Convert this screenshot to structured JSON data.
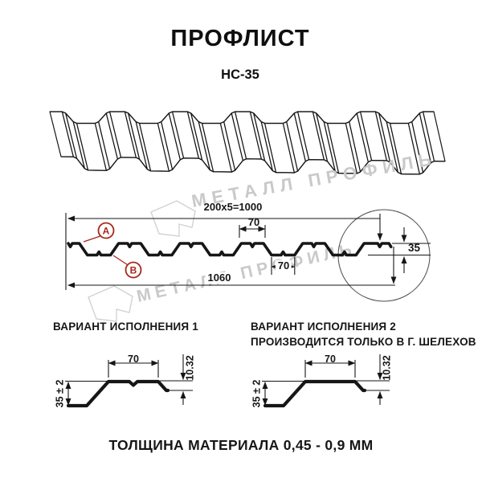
{
  "title": "ПРОФЛИСТ",
  "subtitle": "НС-35",
  "watermark": {
    "text": "МЕТАЛЛ ПРОФИЛЬ"
  },
  "cross_section": {
    "dim_pitch_total": "200x5=1000",
    "dim_rib_top_width": "70",
    "dim_rib_bottom_width": "70",
    "dim_overall_width": "1060",
    "dim_height": "35",
    "label_a": "А",
    "label_b": "В"
  },
  "variant1": {
    "title": "ВАРИАНТ ИСПОЛНЕНИЯ 1",
    "dim_top_width": "70",
    "dim_lip_height": "10.32",
    "dim_height": "35 ± 2"
  },
  "variant2": {
    "title": "ВАРИАНТ ИСПОЛНЕНИЯ 2",
    "note": "ПРОИЗВОДИТСЯ ТОЛЬКО В Г. ШЕЛЕХОВ",
    "dim_top_width": "70",
    "dim_lip_height": "10.32",
    "dim_height": "35 ± 2"
  },
  "footer": "ТОЛЩИНА МАТЕРИАЛА 0,45 - 0,9 ММ",
  "colors": {
    "line": "#161616",
    "accent_red": "#a5281c",
    "watermark": "#c9c9c9",
    "background": "#ffffff"
  }
}
